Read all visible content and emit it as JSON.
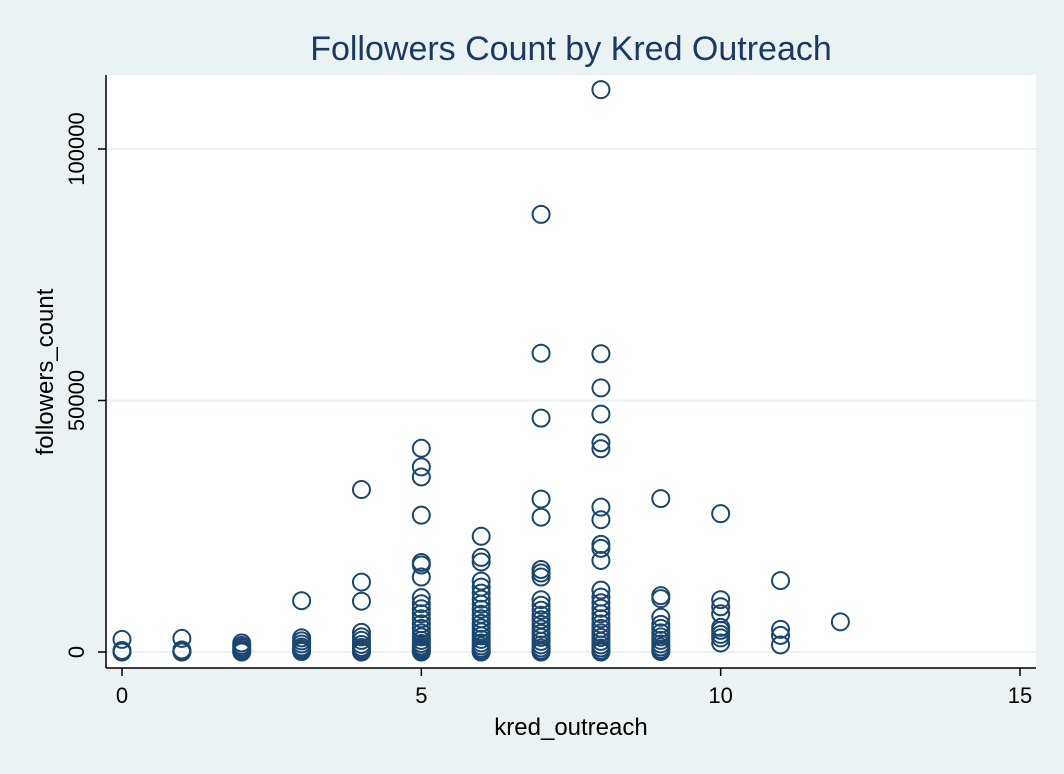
{
  "chart_data": {
    "type": "scatter",
    "title": "Followers Count by Kred Outreach",
    "xlabel": "kred_outreach",
    "ylabel": "followers_count",
    "xlim": [
      0,
      15
    ],
    "ylim": [
      0,
      110000
    ],
    "x_ticks": [
      0,
      5,
      10,
      15
    ],
    "y_ticks": [
      0,
      50000,
      100000
    ],
    "grid": true,
    "legend": "none",
    "colors": {
      "background": "#eaf2f3",
      "plot_background": "#ffffff",
      "marker": "#1a476f",
      "gridline": "#eaf2f3",
      "title": "#1a3a63"
    },
    "series": [
      {
        "points": [
          [
            0,
            0
          ],
          [
            0,
            100
          ],
          [
            0,
            300
          ],
          [
            0,
            2500
          ],
          [
            1,
            0
          ],
          [
            1,
            100
          ],
          [
            1,
            200
          ],
          [
            1,
            400
          ],
          [
            1,
            2700
          ],
          [
            2,
            0
          ],
          [
            2,
            200
          ],
          [
            2,
            500
          ],
          [
            2,
            900
          ],
          [
            2,
            1300
          ],
          [
            2,
            1800
          ],
          [
            3,
            100
          ],
          [
            3,
            300
          ],
          [
            3,
            600
          ],
          [
            3,
            1000
          ],
          [
            3,
            1600
          ],
          [
            3,
            2200
          ],
          [
            3,
            2800
          ],
          [
            3,
            10200
          ],
          [
            4,
            0
          ],
          [
            4,
            200
          ],
          [
            4,
            500
          ],
          [
            4,
            900
          ],
          [
            4,
            1500
          ],
          [
            4,
            2300
          ],
          [
            4,
            3000
          ],
          [
            4,
            3900
          ],
          [
            4,
            10100
          ],
          [
            4,
            13900
          ],
          [
            4,
            32300
          ],
          [
            5,
            0
          ],
          [
            5,
            200
          ],
          [
            5,
            500
          ],
          [
            5,
            800
          ],
          [
            5,
            1200
          ],
          [
            5,
            1700
          ],
          [
            5,
            2300
          ],
          [
            5,
            3000
          ],
          [
            5,
            3800
          ],
          [
            5,
            4700
          ],
          [
            5,
            5600
          ],
          [
            5,
            6600
          ],
          [
            5,
            7600
          ],
          [
            5,
            8600
          ],
          [
            5,
            9600
          ],
          [
            5,
            10800
          ],
          [
            5,
            14900
          ],
          [
            5,
            17300
          ],
          [
            5,
            17800
          ],
          [
            5,
            27200
          ],
          [
            5,
            34800
          ],
          [
            5,
            36800
          ],
          [
            5,
            40500
          ],
          [
            6,
            0
          ],
          [
            6,
            300
          ],
          [
            6,
            700
          ],
          [
            6,
            1200
          ],
          [
            6,
            1800
          ],
          [
            6,
            2500
          ],
          [
            6,
            3200
          ],
          [
            6,
            4000
          ],
          [
            6,
            4800
          ],
          [
            6,
            5700
          ],
          [
            6,
            6600
          ],
          [
            6,
            7500
          ],
          [
            6,
            8500
          ],
          [
            6,
            9500
          ],
          [
            6,
            10500
          ],
          [
            6,
            11700
          ],
          [
            6,
            12900
          ],
          [
            6,
            14100
          ],
          [
            6,
            17900
          ],
          [
            6,
            18800
          ],
          [
            6,
            23000
          ],
          [
            7,
            0
          ],
          [
            7,
            300
          ],
          [
            7,
            800
          ],
          [
            7,
            1400
          ],
          [
            7,
            2100
          ],
          [
            7,
            2900
          ],
          [
            7,
            3700
          ],
          [
            7,
            4600
          ],
          [
            7,
            5500
          ],
          [
            7,
            6400
          ],
          [
            7,
            7300
          ],
          [
            7,
            8300
          ],
          [
            7,
            9300
          ],
          [
            7,
            10400
          ],
          [
            7,
            14900
          ],
          [
            7,
            15700
          ],
          [
            7,
            16400
          ],
          [
            7,
            26800
          ],
          [
            7,
            30400
          ],
          [
            7,
            46500
          ],
          [
            7,
            59400
          ],
          [
            7,
            87000
          ],
          [
            8,
            0
          ],
          [
            8,
            300
          ],
          [
            8,
            800
          ],
          [
            8,
            1400
          ],
          [
            8,
            2100
          ],
          [
            8,
            2900
          ],
          [
            8,
            3800
          ],
          [
            8,
            4700
          ],
          [
            8,
            5600
          ],
          [
            8,
            6600
          ],
          [
            8,
            7600
          ],
          [
            8,
            8700
          ],
          [
            8,
            9800
          ],
          [
            8,
            10900
          ],
          [
            8,
            12300
          ],
          [
            8,
            18200
          ],
          [
            8,
            20600
          ],
          [
            8,
            21400
          ],
          [
            8,
            26300
          ],
          [
            8,
            28800
          ],
          [
            8,
            40400
          ],
          [
            8,
            41600
          ],
          [
            8,
            47300
          ],
          [
            8,
            52500
          ],
          [
            8,
            59300
          ],
          [
            8,
            111800
          ],
          [
            9,
            100
          ],
          [
            9,
            500
          ],
          [
            9,
            1000
          ],
          [
            9,
            1600
          ],
          [
            9,
            2300
          ],
          [
            9,
            3000
          ],
          [
            9,
            3800
          ],
          [
            9,
            4700
          ],
          [
            9,
            5500
          ],
          [
            9,
            6900
          ],
          [
            9,
            10600
          ],
          [
            9,
            11200
          ],
          [
            9,
            30500
          ],
          [
            10,
            1800
          ],
          [
            10,
            2800
          ],
          [
            10,
            3500
          ],
          [
            10,
            4300
          ],
          [
            10,
            4900
          ],
          [
            10,
            7600
          ],
          [
            10,
            9000
          ],
          [
            10,
            10400
          ],
          [
            10,
            27500
          ],
          [
            11,
            1400
          ],
          [
            11,
            3300
          ],
          [
            11,
            4500
          ],
          [
            11,
            14200
          ],
          [
            12,
            6000
          ]
        ]
      }
    ]
  }
}
